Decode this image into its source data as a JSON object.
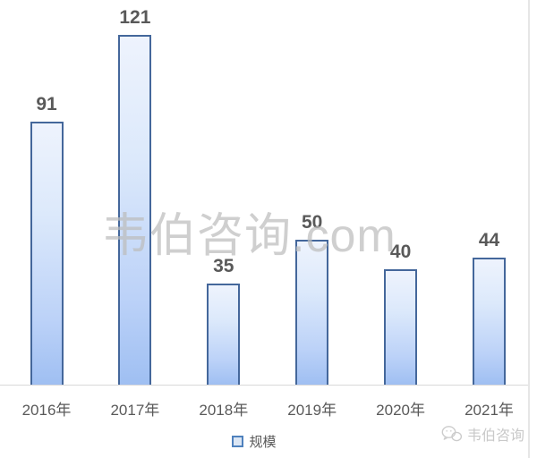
{
  "chart_data": {
    "type": "bar",
    "categories": [
      "2016年",
      "2017年",
      "2018年",
      "2019年",
      "2020年",
      "2021年"
    ],
    "values": [
      91,
      121,
      35,
      50,
      40,
      44
    ],
    "series_name": "规模",
    "title": "",
    "xlabel": "",
    "ylabel": "",
    "ylim": [
      0,
      125
    ],
    "grid": false,
    "legend_position": "bottom-center",
    "value_labels_visible": true,
    "colors": {
      "bar_border": "#44679b",
      "bar_fill_top": "#eef3fd",
      "bar_fill_bottom": "#9fbff2",
      "value_label": "#595959",
      "axis_label": "#595959",
      "axis_line": "#d9d9d9"
    }
  },
  "legend": {
    "items": [
      {
        "label": "规模",
        "swatch_fill": "#dbe6f4",
        "swatch_border": "#4f81bd"
      }
    ]
  },
  "watermarks": {
    "center_text": "韦伯咨询.com",
    "bottom_right_text": "韦伯咨询",
    "bottom_right_icon": "wechat-icon",
    "color": "#c9c9c9"
  }
}
